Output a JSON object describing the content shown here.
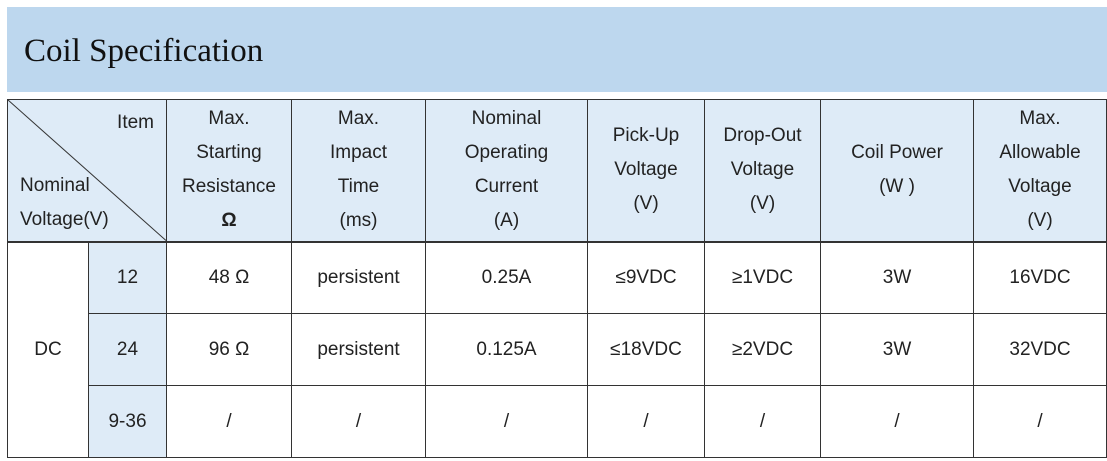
{
  "title": "Coil Specification",
  "corner": {
    "item": "Item",
    "nominal_line1": "Nominal",
    "nominal_line2": "Voltage(V)"
  },
  "headers": {
    "resistance": [
      "Max.",
      "Starting",
      "Resistance",
      "Ω"
    ],
    "impact_time": [
      "Max.",
      "Impact",
      "Time",
      "(ms)"
    ],
    "current": [
      "Nominal",
      "Operating",
      "Current",
      "(A)"
    ],
    "pickup": [
      "Pick-Up",
      "Voltage",
      "(V)"
    ],
    "dropout": [
      "Drop-Out",
      "Voltage",
      "(V)"
    ],
    "power": [
      "Coil Power",
      "(W )"
    ],
    "allowable": [
      "Max.",
      "Allowable",
      "Voltage",
      "(V)"
    ]
  },
  "type_label": "DC",
  "rows": [
    {
      "voltage": "12",
      "resistance": "48 Ω",
      "impact_time": "persistent",
      "current": "0.25A",
      "pickup": "≤9VDC",
      "dropout": "≥1VDC",
      "power": "3W",
      "allowable": "16VDC"
    },
    {
      "voltage": "24",
      "resistance": "96 Ω",
      "impact_time": "persistent",
      "current": "0.125A",
      "pickup": "≤18VDC",
      "dropout": "≥2VDC",
      "power": "3W",
      "allowable": "32VDC"
    },
    {
      "voltage": "9-36",
      "resistance": "/",
      "impact_time": "/",
      "current": "/",
      "pickup": "/",
      "dropout": "/",
      "power": "/",
      "allowable": "/"
    }
  ]
}
